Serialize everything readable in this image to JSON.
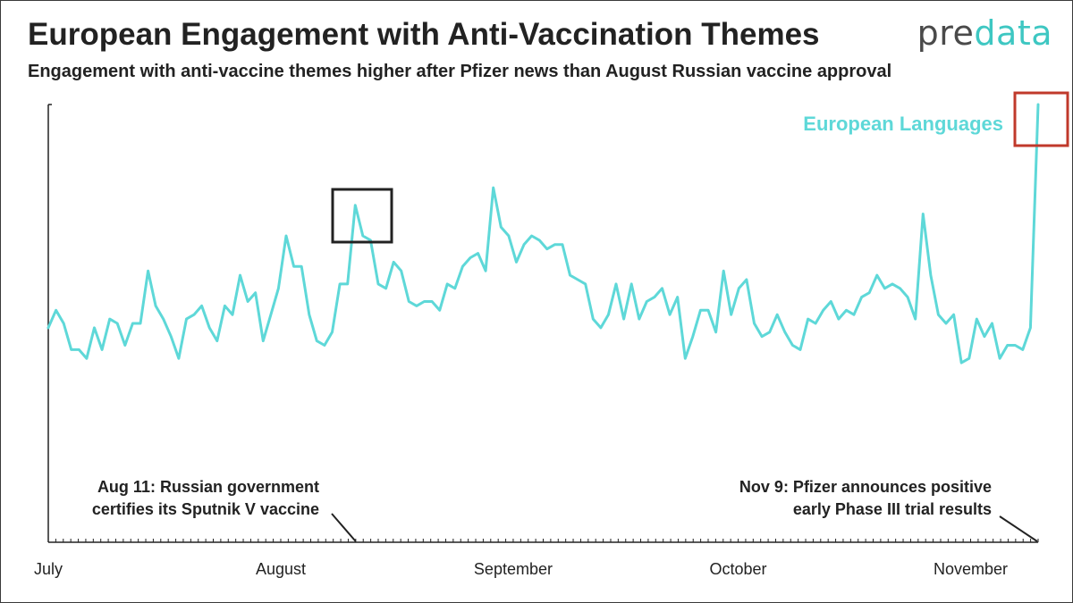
{
  "title": "European Engagement with Anti-Vaccination Themes",
  "subtitle": "Engagement with anti-vaccine themes higher after Pfizer news than August Russian vaccine approval",
  "logo": {
    "part1": "pre",
    "part2": "data"
  },
  "colors": {
    "series": "#5ed8d8",
    "highlight_box_1": "#222222",
    "highlight_box_2": "#c0392b",
    "text": "#222222"
  },
  "chart_data": {
    "type": "line",
    "x_start": "2020-07-01",
    "x_end": "2020-11-10",
    "xtick_labels": [
      "July",
      "August",
      "September",
      "October",
      "November"
    ],
    "xtick_dates": [
      "2020-07-01",
      "2020-08-01",
      "2020-09-01",
      "2020-10-01",
      "2020-11-01"
    ],
    "ylim": [
      0,
      100
    ],
    "y_axis_labels": false,
    "grid": false,
    "series": [
      {
        "name": "European Languages",
        "values": [
          49,
          53,
          50,
          44,
          44,
          42,
          49,
          44,
          51,
          50,
          45,
          50,
          50,
          62,
          54,
          51,
          47,
          42,
          51,
          52,
          54,
          49,
          46,
          54,
          52,
          61,
          55,
          57,
          46,
          52,
          58,
          70,
          63,
          63,
          52,
          46,
          45,
          48,
          59,
          59,
          77,
          70,
          69,
          59,
          58,
          64,
          62,
          55,
          54,
          55,
          55,
          53,
          59,
          58,
          63,
          65,
          66,
          62,
          81,
          72,
          70,
          64,
          68,
          70,
          69,
          67,
          68,
          68,
          61,
          60,
          59,
          51,
          49,
          52,
          59,
          51,
          59,
          51,
          55,
          56,
          58,
          52,
          56,
          42,
          47,
          53,
          53,
          48,
          62,
          52,
          58,
          60,
          50,
          47,
          48,
          52,
          48,
          45,
          44,
          51,
          50,
          53,
          55,
          51,
          53,
          52,
          56,
          57,
          61,
          58,
          59,
          58,
          56,
          51,
          75,
          61,
          52,
          50,
          52,
          41,
          42,
          51,
          47,
          50,
          42,
          45,
          45,
          44,
          49,
          100
        ],
        "color": "#5ed8d8"
      }
    ],
    "legend_placement": "top-right",
    "annotations": [
      {
        "date": "2020-08-11",
        "text_line1": "Aug 11: Russian government",
        "text_line2": "certifies its Sputnik V vaccine"
      },
      {
        "date": "2020-11-09",
        "text_line1": "Nov 9: Pfizer announces positive",
        "text_line2": "early Phase III trial results"
      }
    ]
  }
}
